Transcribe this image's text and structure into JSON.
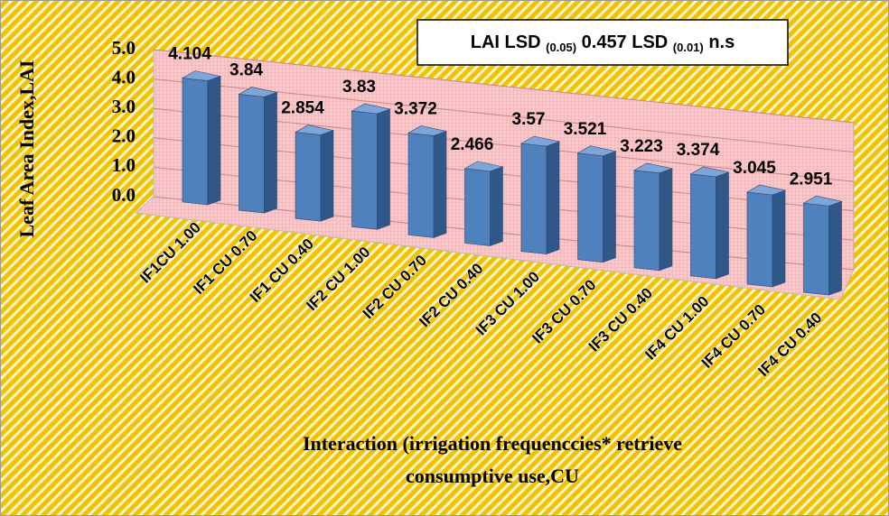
{
  "chart_data": {
    "type": "bar3d",
    "annotation": [
      "LAI LSD ",
      "(0.05)",
      " 0.457 LSD ",
      "(0.01)",
      " n.s"
    ],
    "y_label": "Leaf Area Index,LAI",
    "x_label": [
      "Interaction (irrigation frequenccies* retrieve",
      "consumptive use,CU"
    ],
    "categories": [
      "IF1CU 1.00",
      "IF1 CU 0.70",
      "IF1 CU 0.40",
      "IF2 CU 1.00",
      "IF2 CU 0.70",
      "IF2 CU 0.40",
      "IF3 CU 1.00",
      "IF3 CU 0.70",
      "IF3 CU 0.40",
      "IF4 CU 1.00",
      "IF4 CU 0.70",
      "IF4 CU 0.40"
    ],
    "values": [
      4.104,
      3.84,
      2.854,
      3.83,
      3.372,
      2.466,
      3.57,
      3.521,
      3.223,
      3.374,
      3.045,
      2.951
    ],
    "color": "#4f81bd",
    "ylim": [
      0,
      5
    ],
    "yticks": [
      {
        "value": 0,
        "label": "0.0"
      },
      {
        "value": 1,
        "label": "1.0"
      },
      {
        "value": 2,
        "label": "2.0"
      },
      {
        "value": 3,
        "label": "3.0"
      },
      {
        "value": 4,
        "label": "4.0"
      },
      {
        "value": 5,
        "label": "5.0"
      }
    ],
    "grid": true
  }
}
